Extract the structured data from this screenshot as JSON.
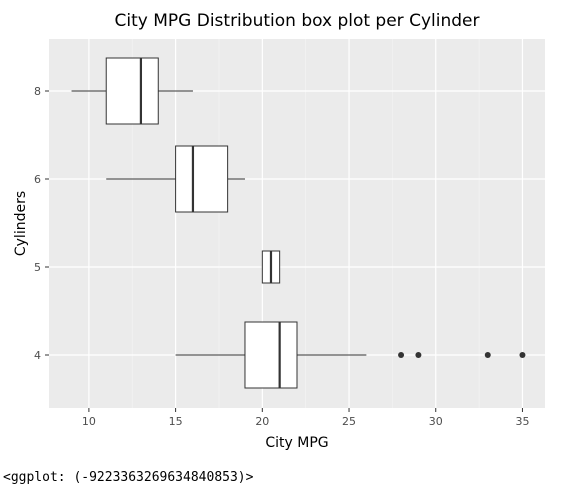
{
  "console": {
    "output": "<ggplot: (-9223363269634840853)>"
  },
  "chart_data": {
    "type": "boxplot",
    "orientation": "horizontal",
    "title": "City MPG Distribution box plot per Cylinder",
    "xlabel": "City MPG",
    "ylabel": "Cylinders",
    "xlim": [
      7.7,
      36.3
    ],
    "x_ticks": [
      10,
      15,
      20,
      25,
      30,
      35
    ],
    "categories": [
      "4",
      "5",
      "6",
      "8"
    ],
    "grid": true,
    "colors": {
      "panel_background": "#ebebeb",
      "grid_major": "#ffffff",
      "grid_minor": "#f5f5f5",
      "box_fill": "#ffffff",
      "box_line": "#333333",
      "outlier": "#333333"
    },
    "boxes": [
      {
        "category": "8",
        "whisker_low": 9,
        "q1": 11,
        "median": 13,
        "q3": 14,
        "whisker_high": 16,
        "outliers": []
      },
      {
        "category": "6",
        "whisker_low": 11,
        "q1": 15,
        "median": 16,
        "q3": 18,
        "whisker_high": 19,
        "outliers": []
      },
      {
        "category": "5",
        "whisker_low": 20,
        "q1": 20,
        "median": 20.5,
        "q3": 21,
        "whisker_high": 21,
        "outliers": []
      },
      {
        "category": "4",
        "whisker_low": 15,
        "q1": 19,
        "median": 21,
        "q3": 22,
        "whisker_high": 26,
        "outliers": [
          28,
          29,
          33,
          35
        ]
      }
    ]
  }
}
